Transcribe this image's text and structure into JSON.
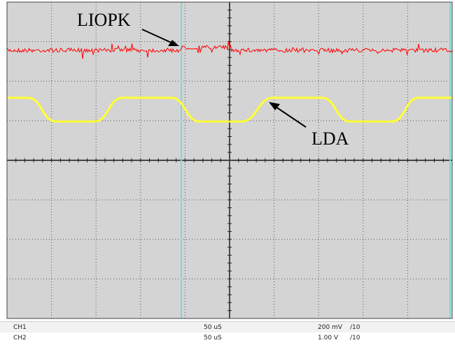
{
  "annotations": {
    "liopk": "LIOPK",
    "lda": "LDA"
  },
  "channels": [
    {
      "name": "CH1",
      "timebase": "50 uS",
      "scale": "200 mV",
      "probe": "/10"
    },
    {
      "name": "CH2",
      "timebase": "50 uS",
      "scale": "1.00 V",
      "probe": "/10"
    }
  ],
  "colors": {
    "background": "#d4d4d4",
    "grid_line": "#000000",
    "cursor": "#7fd7dc",
    "ch1_trace": "#ff0000",
    "ch2_trace": "#ffff33"
  },
  "icons": [
    "arrow-liopk-icon",
    "arrow-lda-icon"
  ]
}
